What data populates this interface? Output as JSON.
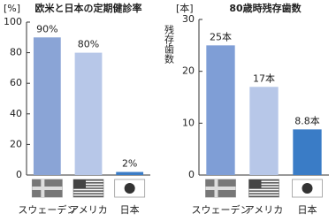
{
  "chart_data": [
    {
      "type": "bar",
      "title": "欧米と日本の定期健診率",
      "unit": "[%]",
      "categories": [
        "スウェーデン",
        "アメリカ",
        "日本"
      ],
      "values": [
        90,
        80,
        2
      ],
      "value_labels": [
        "90%",
        "80%",
        "2%"
      ],
      "colors": [
        "#8aa4d6",
        "#b7c7e8",
        "#3a7cc6"
      ],
      "ylim": [
        0,
        100
      ],
      "yticks": [
        0,
        20,
        40,
        60,
        80,
        100
      ]
    },
    {
      "type": "bar",
      "title": "80歳時残存歯数",
      "unit": "[本]",
      "y_label": "残存歯数",
      "categories": [
        "スウェーデン",
        "アメリカ",
        "日本"
      ],
      "values": [
        25,
        17,
        8.8
      ],
      "value_labels": [
        "25本",
        "17本",
        "8.8本"
      ],
      "colors": [
        "#7f9ed6",
        "#b7c7e8",
        "#3a7cc6"
      ],
      "ylim": [
        0,
        30
      ],
      "yticks": [
        0,
        10,
        20,
        30
      ]
    }
  ]
}
